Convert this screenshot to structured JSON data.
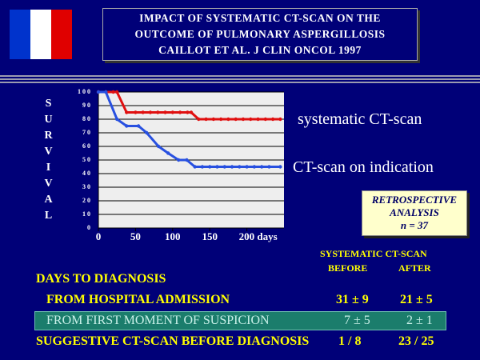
{
  "header": {
    "title_lines": [
      "IMPACT OF SYSTEMATIC CT-SCAN ON THE",
      "OUTCOME OF PULMONARY ASPERGILLOSIS",
      "CAILLOT ET AL. J CLIN ONCOL 1997"
    ]
  },
  "chart_data": {
    "type": "line",
    "y_label": "SURVIVAL",
    "xlim": [
      0,
      250
    ],
    "xticks": [
      0,
      50,
      100,
      150,
      {
        "value": 200,
        "label": "200 days"
      }
    ],
    "ylim": [
      0,
      100
    ],
    "yticks": [
      0,
      10,
      20,
      30,
      40,
      50,
      60,
      70,
      80,
      90,
      100
    ],
    "grid": true,
    "series": [
      {
        "name": "systematic CT-scan",
        "color": "#e01010",
        "x": [
          0,
          10,
          20,
          25,
          38,
          50,
          60,
          70,
          80,
          90,
          100,
          110,
          120,
          125,
          135,
          145,
          155,
          165,
          175,
          185,
          195,
          205,
          215,
          225,
          235,
          245
        ],
        "values": [
          100,
          100,
          100,
          100,
          85,
          85,
          85,
          85,
          85,
          85,
          85,
          85,
          85,
          85,
          80,
          80,
          80,
          80,
          80,
          80,
          80,
          80,
          80,
          80,
          80,
          80
        ]
      },
      {
        "name": "CT-scan on indication",
        "color": "#2850e0",
        "x": [
          0,
          10,
          25,
          38,
          54,
          65,
          81,
          94,
          108,
          119,
          130,
          140,
          150,
          160,
          170,
          180,
          190,
          200,
          210,
          220,
          230,
          245
        ],
        "values": [
          100,
          100,
          80,
          75,
          75,
          70,
          60,
          55,
          50,
          50,
          45,
          45,
          45,
          45,
          45,
          45,
          45,
          45,
          45,
          45,
          45,
          45
        ]
      }
    ]
  },
  "note": {
    "lines": [
      "RETROSPECTIVE",
      "ANALYSIS",
      "n = 37"
    ]
  },
  "table": {
    "group_header": "SYSTEMATIC CT-SCAN",
    "columns": [
      "BEFORE",
      "AFTER"
    ],
    "rows": [
      [
        "DAYS TO DIAGNOSIS"
      ],
      [
        "FROM HOSPITAL ADMISSION",
        "31 ± 9",
        "21 ± 5"
      ],
      [
        "FROM FIRST MOMENT OF SUSPICION",
        "7 ± 5",
        "2 ± 1"
      ],
      [
        "SUGGESTIVE CT-SCAN BEFORE DIAGNOSIS",
        "1 / 8",
        "23 / 25"
      ]
    ]
  }
}
